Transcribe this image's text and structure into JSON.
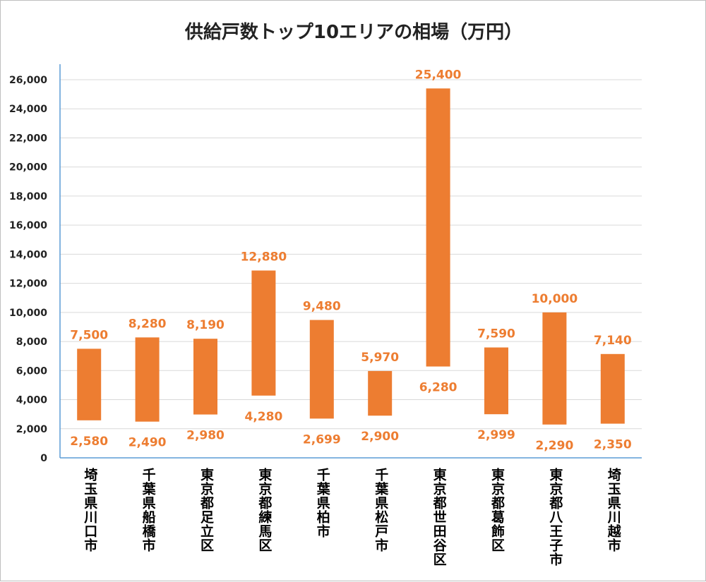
{
  "chart_data": {
    "type": "bar",
    "title": "供給戸数トップ10エリアの相場（万円）",
    "categories": [
      "埼玉県川口市",
      "千葉県船橋市",
      "東京都足立区",
      "東京都練馬区",
      "千葉県柏市",
      "千葉県松戸市",
      "東京都世田谷区",
      "東京都葛飾区",
      "東京都八王子市",
      "埼玉県川越市"
    ],
    "series": [
      {
        "low": [
          2580,
          2490,
          2980,
          4280,
          2699,
          2900,
          6280,
          2999,
          2290,
          2350
        ],
        "high": [
          7500,
          8280,
          8190,
          12880,
          9480,
          5970,
          25400,
          7590,
          10000,
          7140
        ]
      }
    ],
    "low_labels": [
      "2,580",
      "2,490",
      "2,980",
      "4,280",
      "2,699",
      "2,900",
      "6,280",
      "2,999",
      "2,290",
      "2,350"
    ],
    "high_labels": [
      "7,500",
      "8,280",
      "8,190",
      "12,880",
      "9,480",
      "5,970",
      "25,400",
      "7,590",
      "10,000",
      "7,140"
    ],
    "yticks": [
      "0",
      "2,000",
      "4,000",
      "6,000",
      "8,000",
      "10,000",
      "12,000",
      "14,000",
      "16,000",
      "18,000",
      "20,000",
      "22,000",
      "24,000",
      "26,000"
    ],
    "ylim": [
      0,
      26000
    ],
    "xlabel": "",
    "ylabel": "",
    "grid": true,
    "colors": {
      "bar": "#ED7D31",
      "label": "#ED7D31",
      "grid": "#d9d9d9",
      "axis": "#5B9BD5"
    }
  }
}
